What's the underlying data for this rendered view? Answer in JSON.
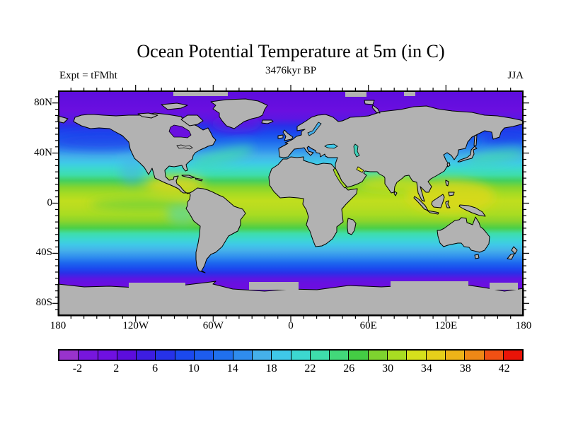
{
  "header": {
    "title": "Ocean Potential Temperature at 5m (in C)",
    "subtitle": "3476kyr BP",
    "experiment_label": "Expt = tFMht",
    "season_label": "JJA"
  },
  "map": {
    "land_color": "#b2b2b2",
    "coastline_color": "#000000",
    "frame_color": "#000000",
    "arctic_ocean_color": "#6a0fe0",
    "y_axis": {
      "tick_labels": [
        {
          "text": "80N",
          "lat": 80
        },
        {
          "text": "40N",
          "lat": 40
        },
        {
          "text": "0",
          "lat": 0
        },
        {
          "text": "40S",
          "lat": -40
        },
        {
          "text": "80S",
          "lat": -80
        }
      ]
    },
    "x_axis": {
      "tick_labels": [
        {
          "text": "180",
          "lon": -180
        },
        {
          "text": "120W",
          "lon": -120
        },
        {
          "text": "60W",
          "lon": -60
        },
        {
          "text": "0",
          "lon": 0
        },
        {
          "text": "60E",
          "lon": 60
        },
        {
          "text": "120E",
          "lon": 120
        },
        {
          "text": "180",
          "lon": 180
        }
      ]
    }
  },
  "colorbar": {
    "min": -4,
    "max": 44,
    "interval": 2,
    "tick_labels": [
      "-2",
      "2",
      "6",
      "10",
      "14",
      "18",
      "22",
      "26",
      "30",
      "34",
      "38",
      "42"
    ],
    "cell_colors": [
      "#9933cc",
      "#7716dd",
      "#6f10e2",
      "#5c0ddd",
      "#3d1de2",
      "#2632e8",
      "#1b49ee",
      "#1d5cee",
      "#2070ee",
      "#2f8cee",
      "#45b0ea",
      "#3fc8e8",
      "#3cd8d0",
      "#3eddab",
      "#42d87a",
      "#44cc44",
      "#7ed32f",
      "#a8dc22",
      "#d6e01c",
      "#e6cf1a",
      "#edb318",
      "#ee8816",
      "#f05014",
      "#e91408"
    ]
  },
  "chart_data": {
    "type": "heatmap",
    "title": "Ocean Potential Temperature at 5m (in C)",
    "subtitle": "3476kyr BP",
    "experiment": "tFMht",
    "season": "JJA",
    "variable": "ocean potential temperature at 5m depth",
    "units": "C",
    "projection": "equirectangular world map, land masked gray",
    "x_axis": {
      "range": [
        -180,
        180
      ],
      "tick_values": [
        -180,
        -120,
        -60,
        0,
        60,
        120,
        180
      ],
      "tick_labels": [
        "180",
        "120W",
        "60W",
        "0",
        "60E",
        "120E",
        "180"
      ]
    },
    "y_axis": {
      "range": [
        -90,
        90
      ],
      "tick_values": [
        80,
        40,
        0,
        -40,
        -80
      ],
      "tick_labels": [
        "80N",
        "40N",
        "0",
        "40S",
        "80S"
      ]
    },
    "colorbar": {
      "min": -4,
      "max": 44,
      "interval": 2,
      "n_cells": 24,
      "tick_labels": [
        "-2",
        "2",
        "6",
        "10",
        "14",
        "18",
        "22",
        "26",
        "30",
        "34",
        "38",
        "42"
      ]
    },
    "zonal_mean_estimate": {
      "lat": [
        85,
        75,
        65,
        55,
        45,
        35,
        25,
        15,
        5,
        0,
        -5,
        -15,
        -25,
        -35,
        -45,
        -55,
        -65
      ],
      "temp_c": [
        -1,
        0,
        4,
        9,
        14,
        20,
        25,
        28,
        28,
        28,
        27,
        24,
        19,
        13,
        7,
        1,
        -1
      ]
    },
    "legend_position": "horizontal colorbar below map",
    "grid": false
  }
}
